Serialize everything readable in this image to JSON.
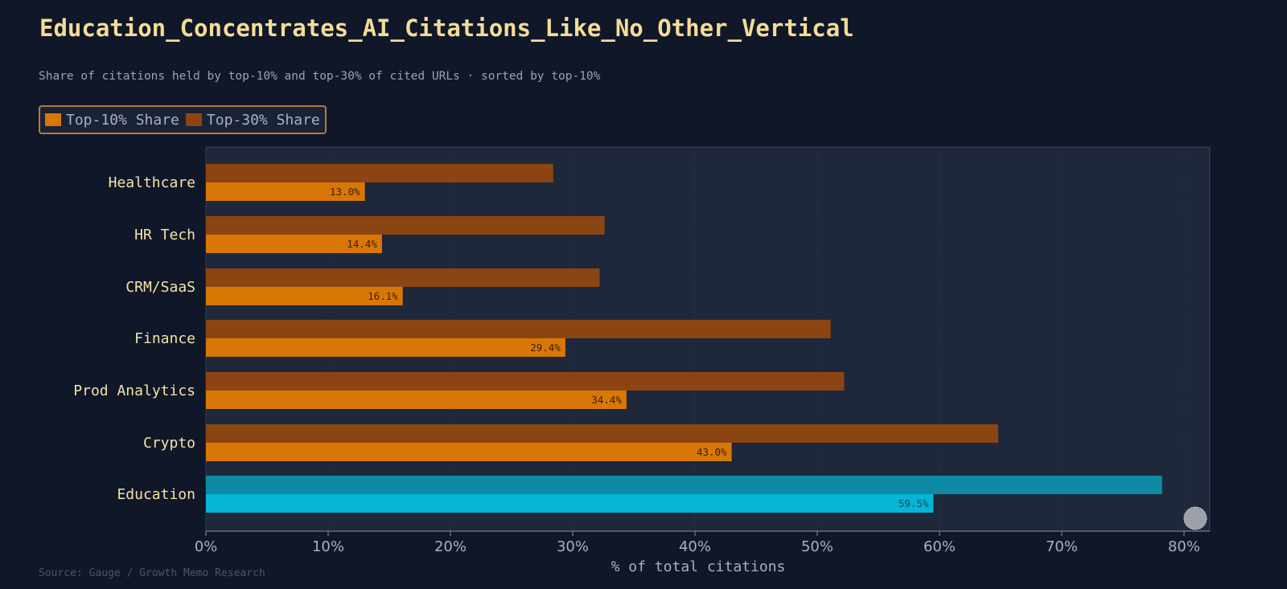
{
  "chart_data": {
    "type": "bar",
    "orientation": "horizontal",
    "title": "Education_Concentrates_AI_Citations_Like_No_Other_Vertical",
    "subtitle": "Share of citations held by top-10% and top-30% of cited URLs · sorted by top-10%",
    "xlabel": "% of total citations",
    "ylabel": "",
    "xlim": [
      0,
      82
    ],
    "xticks": [
      "0%",
      "10%",
      "20%",
      "30%",
      "40%",
      "50%",
      "60%",
      "70%",
      "80%"
    ],
    "grid": true,
    "legend_position": "top-left",
    "categories": [
      "Healthcare",
      "HR Tech",
      "CRM/SaaS",
      "Finance",
      "Prod Analytics",
      "Crypto",
      "Education"
    ],
    "series": [
      {
        "name": "Top-10% Share",
        "values": [
          13.0,
          14.4,
          16.1,
          29.4,
          34.4,
          43.0,
          59.5
        ],
        "labels": [
          "13.0%",
          "14.4%",
          "16.1%",
          "29.4%",
          "34.4%",
          "43.0%",
          "59.5%"
        ],
        "color": "#d97706",
        "highlight_color": "#06b6d4"
      },
      {
        "name": "Top-30% Share",
        "values": [
          28.4,
          32.6,
          32.2,
          51.1,
          52.2,
          64.8,
          78.2
        ],
        "color": "#8b4513",
        "highlight_color": "#0e8aa6"
      }
    ],
    "highlight_category": "Education",
    "source": "Source: Gauge / Growth Memo Research"
  },
  "colors": {
    "background": "#0f1729",
    "plot_background": "#1e283a",
    "title": "#f5dc96",
    "category_label": "#f5e3a6"
  }
}
